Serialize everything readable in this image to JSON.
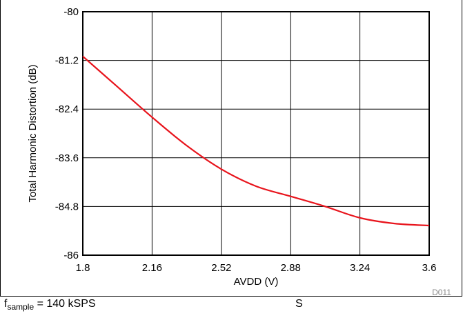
{
  "chart_data": {
    "type": "line",
    "xlabel": "AVDD (V)",
    "ylabel": "Total Harmonic Distortion (dB)",
    "xlim": [
      1.8,
      3.6
    ],
    "ylim": [
      -86,
      -80
    ],
    "x_ticks": [
      "1.8",
      "2.16",
      "2.52",
      "2.88",
      "3.24",
      "3.6"
    ],
    "y_ticks": [
      "-80",
      "-81.2",
      "-82.4",
      "-83.6",
      "-84.8",
      "-86"
    ],
    "grid": true,
    "series": [
      {
        "color": "#e8141c",
        "x": [
          1.8,
          1.98,
          2.16,
          2.34,
          2.52,
          2.7,
          2.88,
          3.06,
          3.24,
          3.42,
          3.6
        ],
        "values": [
          -81.1,
          -81.85,
          -82.6,
          -83.3,
          -83.88,
          -84.3,
          -84.55,
          -84.8,
          -85.08,
          -85.22,
          -85.27
        ]
      }
    ],
    "figure_code": "D011"
  },
  "caption": {
    "f_main": "f",
    "f_sub": "sample",
    "f_rest": " = 140 kSPS",
    "right_text": "S"
  }
}
